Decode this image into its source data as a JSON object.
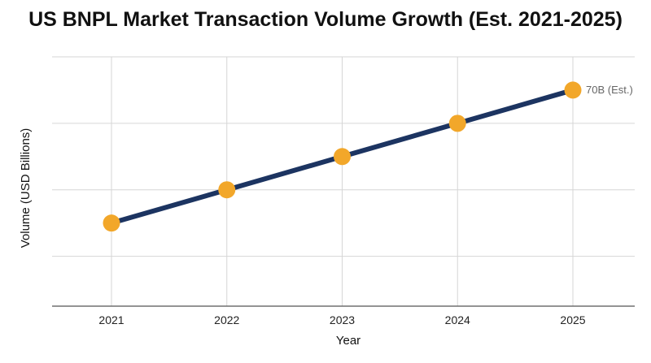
{
  "chart_data": {
    "type": "line",
    "title": "US BNPL Market Transaction Volume Growth (Est. 2021-2025)",
    "xlabel": "Year",
    "ylabel": "Volume (USD Billions)",
    "x": [
      "2021",
      "2022",
      "2023",
      "2024",
      "2025"
    ],
    "series": [
      {
        "values": [
          30,
          40,
          50,
          60,
          70
        ],
        "color": "#1c3461",
        "marker_color": "#f2a72a"
      }
    ],
    "ylim": [
      5,
      80
    ],
    "y_gridlines": [
      20,
      40,
      60,
      80
    ],
    "grid": true,
    "annotations": [
      {
        "x": "2025",
        "y": 70,
        "text": "70B (Est.)"
      }
    ]
  }
}
